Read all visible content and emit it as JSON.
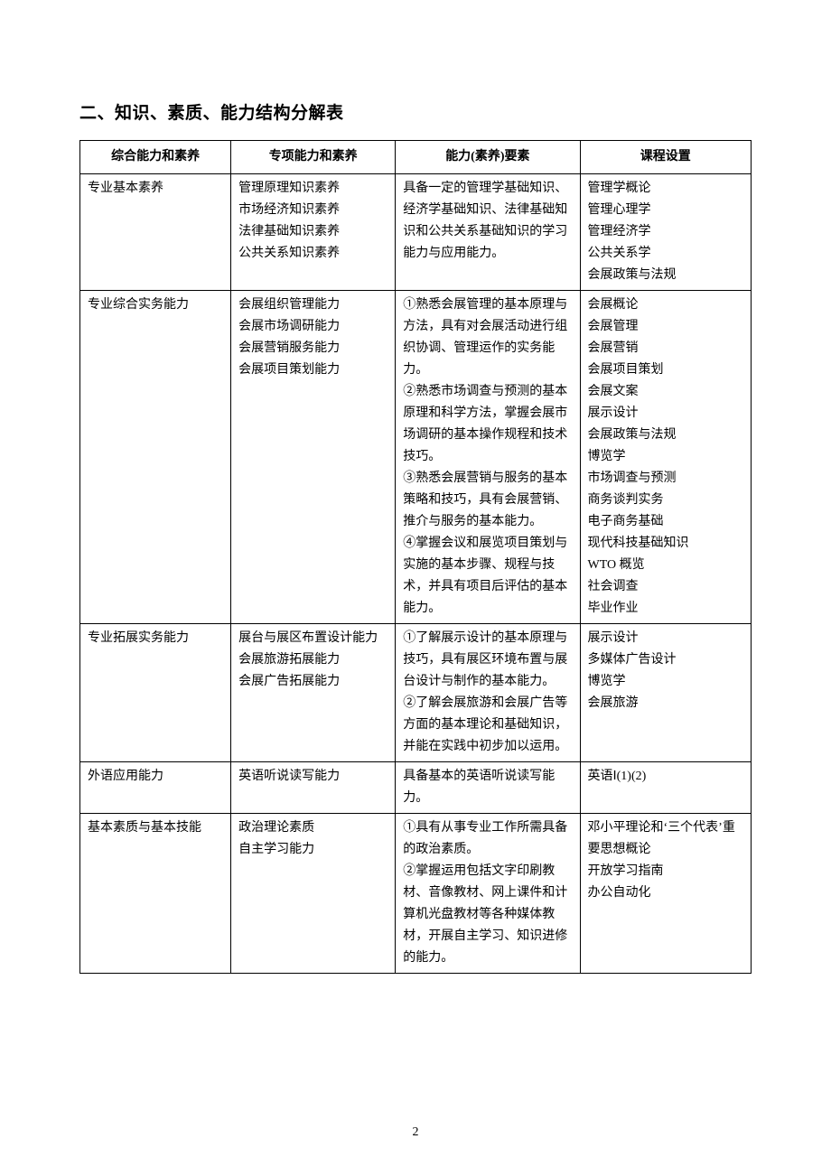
{
  "section_title": "二、知识、素质、能力结构分解表",
  "page_number": "2",
  "columns": {
    "c1": "综合能力和素养",
    "c2": "专项能力和素养",
    "c3": "能力(素养)要素",
    "c4": "课程设置"
  },
  "rows": [
    {
      "col1": "专业基本素养",
      "col2": "管理原理知识素养\n市场经济知识素养\n法律基础知识素养\n公共关系知识素养",
      "col3": "具备一定的管理学基础知识、经济学基础知识、法律基础知识和公共关系基础知识的学习能力与应用能力。",
      "col4": "管理学概论\n管理心理学\n管理经济学\n公共关系学\n会展政策与法规"
    },
    {
      "col1": "专业综合实务能力",
      "col2": "会展组织管理能力\n会展市场调研能力\n会展营销服务能力\n会展项目策划能力",
      "col3": "①熟悉会展管理的基本原理与方法，具有对会展活动进行组织协调、管理运作的实务能力。\n②熟悉市场调查与预测的基本原理和科学方法，掌握会展市场调研的基本操作规程和技术技巧。\n③熟悉会展营销与服务的基本策略和技巧，具有会展营销、推介与服务的基本能力。\n④掌握会议和展览项目策划与实施的基本步骤、规程与技术，并具有项目后评估的基本能力。",
      "col4": "会展概论\n会展管理\n会展营销\n会展项目策划\n会展文案\n展示设计\n会展政策与法规\n博览学\n市场调查与预测\n商务谈判实务\n电子商务基础\n现代科技基础知识\nWTO 概览\n社会调查\n毕业作业"
    },
    {
      "col1": "专业拓展实务能力",
      "col2": "展台与展区布置设计能力\n会展旅游拓展能力\n会展广告拓展能力",
      "col3": "①了解展示设计的基本原理与技巧，具有展区环境布置与展台设计与制作的基本能力。\n②了解会展旅游和会展广告等方面的基本理论和基础知识，并能在实践中初步加以运用。",
      "col4": "展示设计\n多媒体广告设计\n博览学\n会展旅游"
    },
    {
      "col1": "外语应用能力",
      "col2": "英语听说读写能力",
      "col3": "具备基本的英语听说读写能力。",
      "col4": "英语Ⅰ(1)(2)"
    },
    {
      "col1": "基本素质与基本技能",
      "col2": "政治理论素质\n自主学习能力",
      "col3": "①具有从事专业工作所需具备的政治素质。\n②掌握运用包括文字印刷教材、音像教材、网上课件和计算机光盘教材等各种媒体教材，开展自主学习、知识进修的能力。",
      "col4": "邓小平理论和‘三个代表’重要思想概论\n开放学习指南\n办公自动化"
    }
  ]
}
